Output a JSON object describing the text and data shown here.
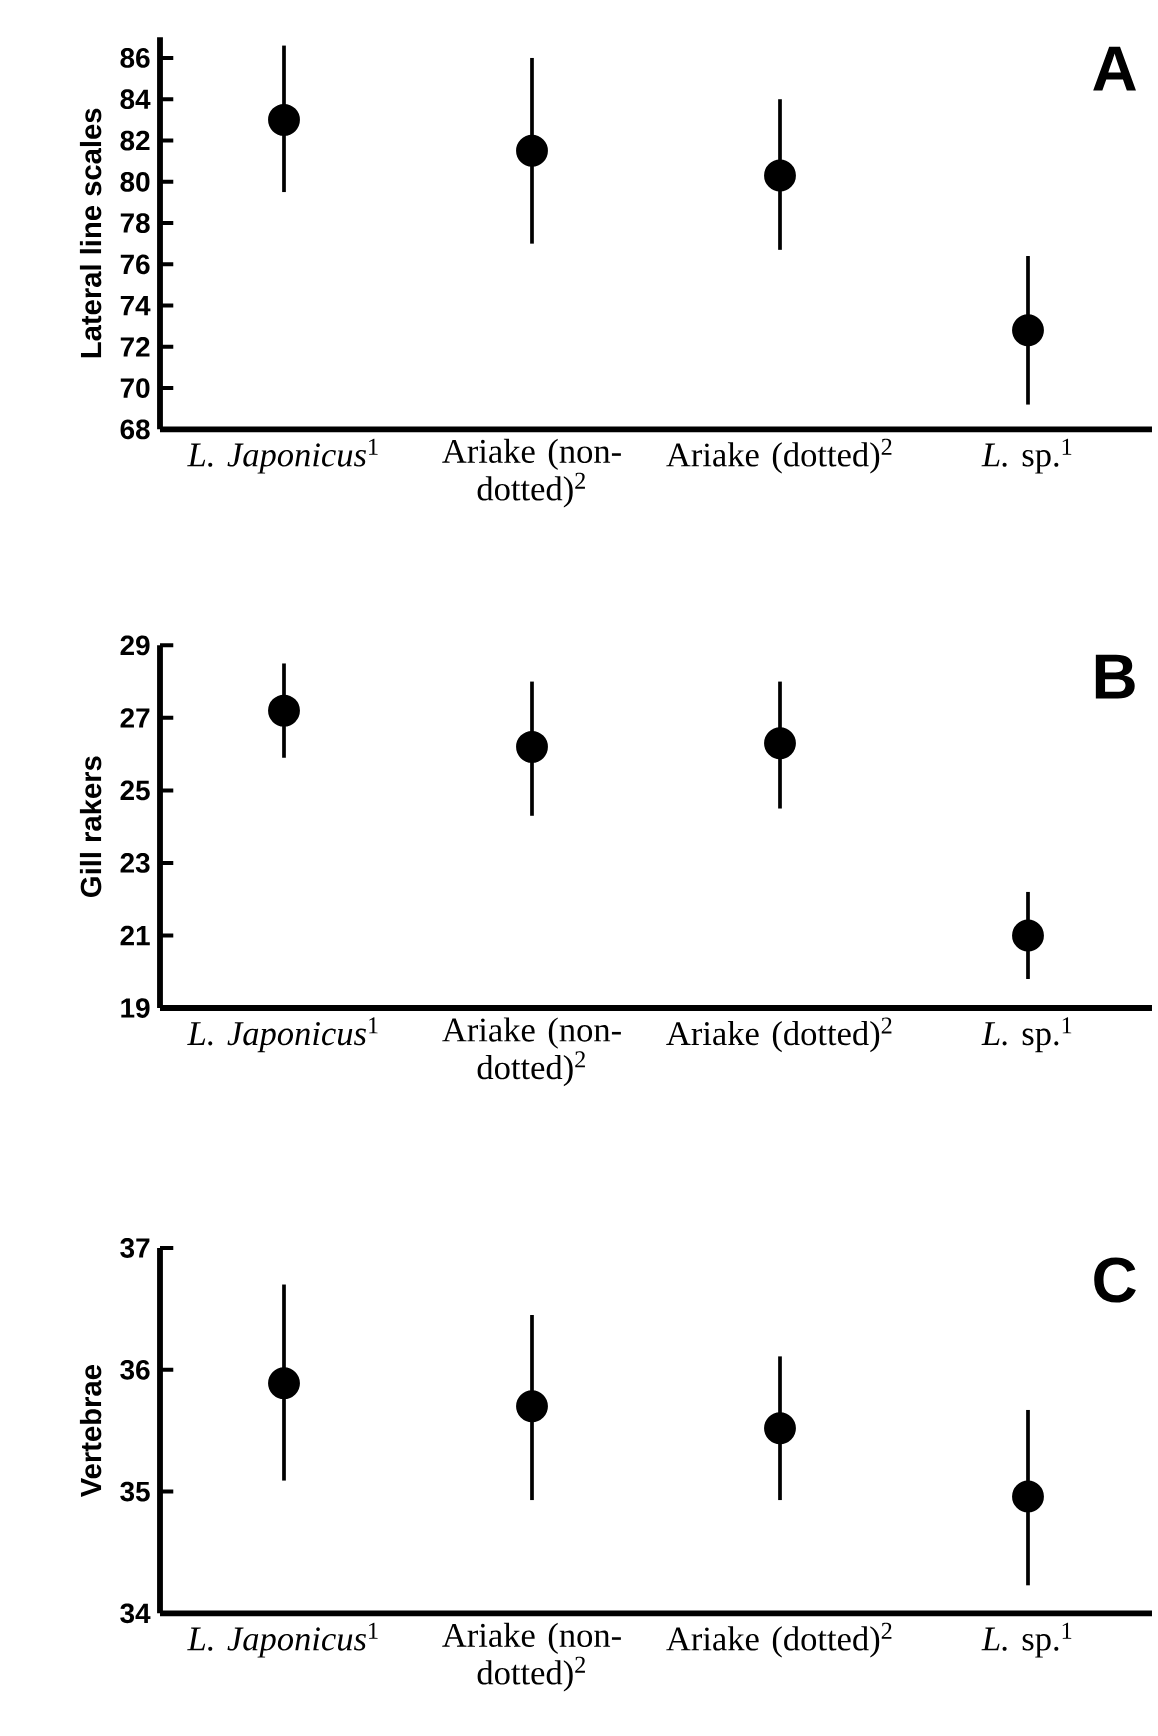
{
  "chart_data": [
    {
      "type": "scatter",
      "ylabel": "Lateral line scales",
      "annotations": [
        "A"
      ],
      "marker": "circle",
      "color": "#000000",
      "categories": [
        "*L. Japonicus*$^{1}$",
        "Ariake (non-dotted)$^{2}$",
        "Ariake (dotted)$^{2}$",
        "*L.* sp.$^{1}$"
      ],
      "values": [
        83.0,
        81.5,
        80.3,
        72.8
      ],
      "errors": [
        [
          79.5,
          86.6
        ],
        [
          77.0,
          86.0
        ],
        [
          76.7,
          84.0
        ],
        [
          69.2,
          76.4
        ]
      ],
      "ylim": [
        68,
        87
      ],
      "yticks": [
        68,
        70,
        72,
        74,
        76,
        78,
        80,
        82,
        84,
        86
      ]
    },
    {
      "type": "scatter",
      "ylabel": "Gill rakers",
      "annotations": [
        "B"
      ],
      "marker": "circle",
      "color": "#000000",
      "categories": [
        "*L. Japonicus*$^{1}$",
        "Ariake (non-dotted)$^{2}$",
        "Ariake (dotted)$^{2}$",
        "*L.* sp.$^{1}$"
      ],
      "values": [
        27.2,
        26.2,
        26.3,
        21.0
      ],
      "errors": [
        [
          25.9,
          28.5
        ],
        [
          24.3,
          28.0
        ],
        [
          24.5,
          28.0
        ],
        [
          19.8,
          22.2
        ]
      ],
      "ylim": [
        19,
        29
      ],
      "yticks": [
        19,
        21,
        23,
        25,
        27,
        29
      ]
    },
    {
      "type": "scatter",
      "ylabel": "Vertebrae",
      "annotations": [
        "C"
      ],
      "marker": "circle",
      "color": "#000000",
      "categories": [
        "*L. Japonicus*$^{1}$",
        "Ariake (non-dotted)$^{2}$",
        "Ariake (dotted)$^{2}$",
        "*L.* sp.$^{1}$"
      ],
      "values": [
        35.89,
        35.7,
        35.52,
        34.96
      ],
      "errors": [
        [
          35.09,
          36.7
        ],
        [
          34.93,
          36.45
        ],
        [
          34.93,
          36.11
        ],
        [
          34.23,
          35.67
        ]
      ],
      "ylim": [
        34,
        37
      ],
      "yticks": [
        34,
        35,
        36,
        37
      ]
    }
  ]
}
